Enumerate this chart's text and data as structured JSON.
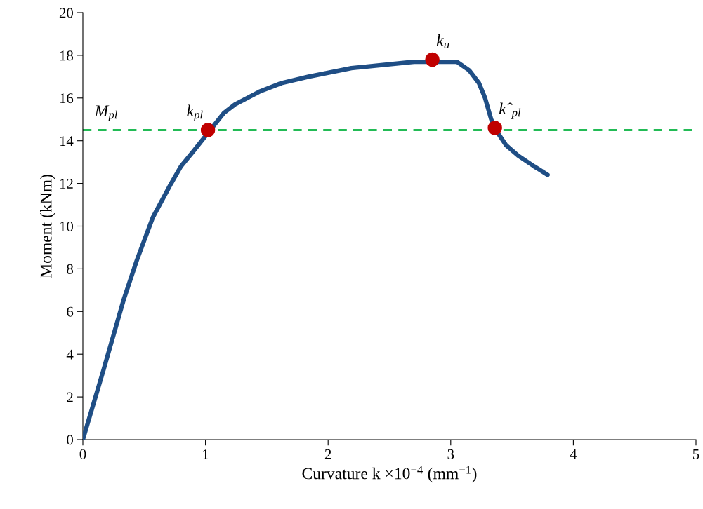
{
  "chart_data": {
    "type": "line",
    "xlabel": "Curvature k ×10$^{−4}$ (mm$^{−1}$)",
    "ylabel": "Moment (kNm)",
    "xlim": [
      0,
      5
    ],
    "xticks": [
      0,
      1,
      2,
      3,
      4,
      5
    ],
    "ylim": [
      0,
      20
    ],
    "yticks": [
      0,
      2,
      4,
      6,
      8,
      10,
      12,
      14,
      16,
      18,
      20
    ],
    "grid": false,
    "legend": false,
    "marker": "none",
    "line_style": "solid",
    "series": [
      {
        "color": "#1f4e85",
        "x": [
          0,
          0.17,
          0.33,
          0.44,
          0.57,
          0.72,
          0.8,
          0.9,
          1.15,
          1.24,
          1.44,
          1.62,
          1.84,
          2.19,
          2.53,
          2.7,
          3.05,
          3.15,
          3.23,
          3.28,
          3.33,
          3.38,
          3.45,
          3.55,
          3.68,
          3.79
        ],
        "values": [
          0,
          3.3,
          6.5,
          8.4,
          10.4,
          12.0,
          12.8,
          13.5,
          15.3,
          15.7,
          16.3,
          16.7,
          17.0,
          17.4,
          17.6,
          17.7,
          17.7,
          17.3,
          16.7,
          16.0,
          15.0,
          14.4,
          13.8,
          13.3,
          12.8,
          12.4
        ]
      },
      {
        "type": "scatter",
        "color": "#c00000",
        "marker": "circle",
        "x": [
          1.02,
          2.85,
          3.36
        ],
        "values": [
          14.5,
          17.8,
          14.6
        ]
      }
    ],
    "ref_lines": [
      {
        "axis": "y",
        "value": 14.5,
        "label": "M$_{pl}$",
        "color": "#22bb55",
        "line_style": "dashed"
      }
    ],
    "annotations": [
      {
        "text": "k$_{pl}$",
        "x": 1.02,
        "y": 14.5
      },
      {
        "text": "k$_{u}$",
        "x": 2.85,
        "y": 17.8
      },
      {
        "text": "kˆ$_{pl}$",
        "x": 3.36,
        "y": 14.6
      }
    ]
  }
}
